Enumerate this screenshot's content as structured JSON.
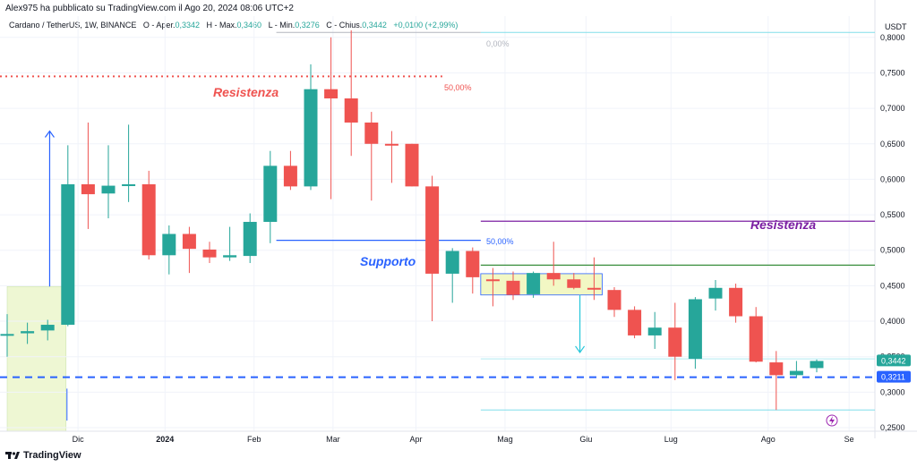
{
  "header": {
    "published": "Alex975 ha pubblicato su TradingView.com il Ago 20, 2024 08:06 UTC+2"
  },
  "legend": {
    "symbol": "Cardano / TetherUS, 1W, BINANCE",
    "o_label": "O - Aper.",
    "o_value": "0,3342",
    "h_label": "H - Max.",
    "h_value": "0,3460",
    "l_label": "L - Min.",
    "l_value": "0,3276",
    "c_label": "C - Chius.",
    "c_value": "0,3442",
    "change": "+0,0100 (+2,99%)"
  },
  "footer": {
    "brand": "TradingView"
  },
  "colors": {
    "up": "#26a69a",
    "down": "#ef5350",
    "resistance_red": "#ef5350",
    "resistance_purple": "#7b1fa2",
    "support_blue": "#2962ff",
    "dashed_blue": "#2962ff",
    "green_line": "#388e3c",
    "zone_fill": "#eef7d3"
  },
  "chart_data": {
    "type": "candlestick",
    "currency": "USDT",
    "ylim": [
      0.245,
      0.83
    ],
    "y_ticks": [
      "0,8000",
      "0,7500",
      "0,7000",
      "0,6500",
      "0,6000",
      "0,5500",
      "0,5000",
      "0,4500",
      "0,4000",
      "0,3500",
      "0,3000",
      "0,2500"
    ],
    "y_tick_values": [
      0.8,
      0.75,
      0.7,
      0.65,
      0.6,
      0.55,
      0.5,
      0.45,
      0.4,
      0.35,
      0.3,
      0.25
    ],
    "x_labels": [
      "Dic",
      "2024",
      "Feb",
      "Mar",
      "Apr",
      "Mag",
      "Giu",
      "Lug",
      "Ago",
      "Se"
    ],
    "x_label_index": [
      3.5,
      7.8,
      12.2,
      16.1,
      20.2,
      24.6,
      28.6,
      32.8,
      37.6,
      41.6
    ],
    "candles": [
      {
        "o": 0.38,
        "h": 0.41,
        "l": 0.35,
        "c": 0.382
      },
      {
        "o": 0.383,
        "h": 0.398,
        "l": 0.368,
        "c": 0.386
      },
      {
        "o": 0.387,
        "h": 0.402,
        "l": 0.373,
        "c": 0.395
      },
      {
        "o": 0.395,
        "h": 0.648,
        "l": 0.393,
        "c": 0.593
      },
      {
        "o": 0.593,
        "h": 0.68,
        "l": 0.53,
        "c": 0.579
      },
      {
        "o": 0.58,
        "h": 0.648,
        "l": 0.545,
        "c": 0.591
      },
      {
        "o": 0.591,
        "h": 0.677,
        "l": 0.568,
        "c": 0.593
      },
      {
        "o": 0.593,
        "h": 0.612,
        "l": 0.487,
        "c": 0.493
      },
      {
        "o": 0.493,
        "h": 0.535,
        "l": 0.466,
        "c": 0.523
      },
      {
        "o": 0.523,
        "h": 0.533,
        "l": 0.468,
        "c": 0.502
      },
      {
        "o": 0.501,
        "h": 0.512,
        "l": 0.482,
        "c": 0.49
      },
      {
        "o": 0.49,
        "h": 0.533,
        "l": 0.485,
        "c": 0.493
      },
      {
        "o": 0.492,
        "h": 0.552,
        "l": 0.482,
        "c": 0.54
      },
      {
        "o": 0.54,
        "h": 0.64,
        "l": 0.51,
        "c": 0.619
      },
      {
        "o": 0.619,
        "h": 0.64,
        "l": 0.585,
        "c": 0.59
      },
      {
        "o": 0.59,
        "h": 0.762,
        "l": 0.585,
        "c": 0.727
      },
      {
        "o": 0.727,
        "h": 0.8,
        "l": 0.572,
        "c": 0.714
      },
      {
        "o": 0.714,
        "h": 0.81,
        "l": 0.633,
        "c": 0.68
      },
      {
        "o": 0.68,
        "h": 0.695,
        "l": 0.57,
        "c": 0.65
      },
      {
        "o": 0.65,
        "h": 0.668,
        "l": 0.595,
        "c": 0.649
      },
      {
        "o": 0.65,
        "h": 0.65,
        "l": 0.59,
        "c": 0.59
      },
      {
        "o": 0.59,
        "h": 0.605,
        "l": 0.4,
        "c": 0.467
      },
      {
        "o": 0.467,
        "h": 0.503,
        "l": 0.426,
        "c": 0.499
      },
      {
        "o": 0.499,
        "h": 0.504,
        "l": 0.439,
        "c": 0.462
      },
      {
        "o": 0.459,
        "h": 0.475,
        "l": 0.421,
        "c": 0.457
      },
      {
        "o": 0.457,
        "h": 0.47,
        "l": 0.43,
        "c": 0.437
      },
      {
        "o": 0.438,
        "h": 0.47,
        "l": 0.433,
        "c": 0.468
      },
      {
        "o": 0.468,
        "h": 0.512,
        "l": 0.45,
        "c": 0.459
      },
      {
        "o": 0.459,
        "h": 0.468,
        "l": 0.445,
        "c": 0.447
      },
      {
        "o": 0.447,
        "h": 0.49,
        "l": 0.43,
        "c": 0.445
      },
      {
        "o": 0.444,
        "h": 0.448,
        "l": 0.406,
        "c": 0.416
      },
      {
        "o": 0.416,
        "h": 0.421,
        "l": 0.376,
        "c": 0.38
      },
      {
        "o": 0.38,
        "h": 0.413,
        "l": 0.361,
        "c": 0.391
      },
      {
        "o": 0.391,
        "h": 0.426,
        "l": 0.317,
        "c": 0.35
      },
      {
        "o": 0.347,
        "h": 0.434,
        "l": 0.333,
        "c": 0.431
      },
      {
        "o": 0.432,
        "h": 0.458,
        "l": 0.415,
        "c": 0.447
      },
      {
        "o": 0.447,
        "h": 0.453,
        "l": 0.398,
        "c": 0.407
      },
      {
        "o": 0.407,
        "h": 0.42,
        "l": 0.342,
        "c": 0.343
      },
      {
        "o": 0.342,
        "h": 0.358,
        "l": 0.275,
        "c": 0.324
      },
      {
        "o": 0.324,
        "h": 0.344,
        "l": 0.32,
        "c": 0.33
      },
      {
        "o": 0.334,
        "h": 0.346,
        "l": 0.328,
        "c": 0.344
      }
    ],
    "price_labels": [
      {
        "value": 0.3442,
        "text": "0,3442",
        "color": "#26a69a"
      },
      {
        "value": 0.3211,
        "text": "0,3211",
        "color": "#2962ff"
      }
    ],
    "annotations": [
      {
        "text": "Resistenza",
        "color": "#ef5350"
      },
      {
        "text": "Resistenza",
        "color": "#7b1fa2"
      },
      {
        "text": "Supporto",
        "color": "#2962ff"
      },
      {
        "text": "50,00%",
        "color": "#ef5350"
      },
      {
        "text": "50,00%",
        "color": "#2962ff"
      },
      {
        "text": "0,00%",
        "color": "#b2b5be"
      }
    ],
    "levels": {
      "resistance_dotted": 0.745,
      "resistance_upper_purple": 0.541,
      "green_line": 0.479,
      "support_line": 0.514,
      "dashed_support": 0.3211,
      "fib_top_left": 0.807,
      "fib_top_right": 0.807,
      "fib_bottom": 0.275,
      "zone_top": 0.467,
      "zone_bottom": 0.437,
      "left_zone_top": 0.449
    },
    "grid": true,
    "legend": "top-left"
  }
}
